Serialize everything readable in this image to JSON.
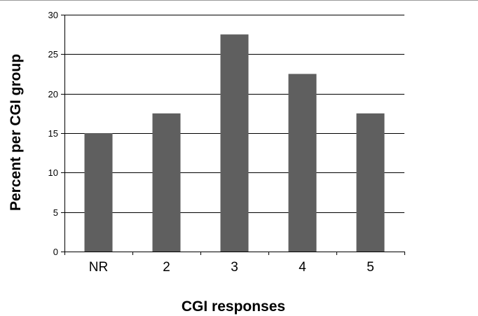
{
  "chart_data": {
    "type": "bar",
    "categories": [
      "NR",
      "2",
      "3",
      "4",
      "5"
    ],
    "values": [
      15,
      17.5,
      27.5,
      22.5,
      17.5
    ],
    "xlabel": "CGI responses",
    "ylabel": "Percent per CGI group",
    "ylim": [
      0,
      30
    ],
    "yticks": [
      0,
      5,
      10,
      15,
      20,
      25,
      30
    ],
    "grid": true,
    "bar_color": "#5f5f5f"
  }
}
